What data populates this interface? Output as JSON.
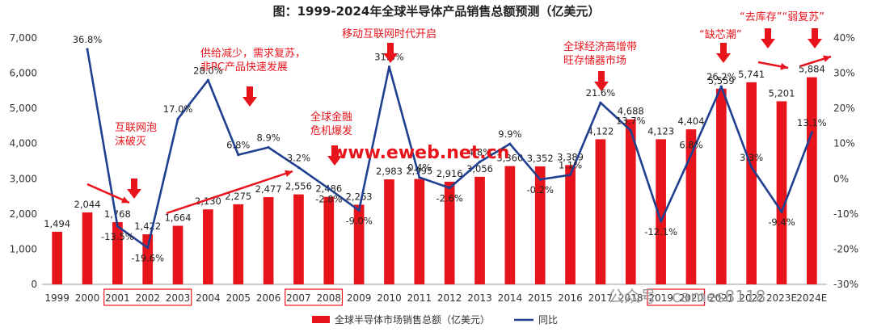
{
  "chart_data": {
    "type": "bar",
    "title": "图：1999-2024年全球半导体产品销售总额预测（亿美元）",
    "categories": [
      "1999",
      "2000",
      "2001",
      "2002",
      "2003",
      "2004",
      "2005",
      "2006",
      "2007",
      "2008",
      "2009",
      "2010",
      "2011",
      "2012",
      "2013",
      "2014",
      "2015",
      "2016",
      "2017",
      "2018",
      "2019",
      "2020",
      "2021",
      "2022",
      "2023E",
      "2024E"
    ],
    "series": [
      {
        "name": "全球半导体市场销售总额（亿美元）",
        "type": "bar",
        "color": "#e8141c",
        "axis": "left",
        "values": [
          1494,
          2044,
          1768,
          1422,
          1664,
          2130,
          2275,
          2477,
          2556,
          2486,
          2263,
          2983,
          2995,
          2916,
          3056,
          3360,
          3352,
          3389,
          4122,
          4688,
          4123,
          4404,
          5559,
          5741,
          5201,
          5884
        ]
      },
      {
        "name": "同比",
        "type": "line",
        "color": "#1f3f8f",
        "axis": "right",
        "values": [
          null,
          36.8,
          -13.5,
          -19.6,
          17.0,
          28.0,
          6.8,
          8.9,
          3.2,
          -2.8,
          -9.0,
          31.8,
          0.4,
          -2.6,
          4.8,
          9.9,
          -0.2,
          1.1,
          21.6,
          13.7,
          -12.1,
          6.8,
          26.2,
          3.3,
          -9.4,
          13.1
        ]
      }
    ],
    "ylim_left": [
      0,
      7000
    ],
    "ylim_right": [
      -30,
      40
    ],
    "yticks_left": [
      "0",
      "1,000",
      "2,000",
      "3,000",
      "4,000",
      "5,000",
      "6,000",
      "7,000"
    ],
    "yticks_right": [
      "-30%",
      "-20%",
      "-10%",
      "0%",
      "10%",
      "20%",
      "30%",
      "40%"
    ],
    "bar_labels": [
      "1,494",
      "2,044",
      "1,768",
      "1,422",
      "1,664",
      "2,130",
      "2,275",
      "2,477",
      "2,556",
      "2,486",
      "2,263",
      "2,983",
      "2,995",
      "2,916",
      "3,056",
      "3,360",
      "3,352",
      "3,389",
      "4,122",
      "4,688",
      "4,123",
      "4,404",
      "5,559",
      "5,741",
      "5,201",
      "5,884"
    ],
    "line_labels": [
      "",
      "36.8%",
      "-13.5%",
      "-19.6%",
      "17.0%",
      "28.0%",
      "6.8%",
      "8.9%",
      "3.2%",
      "-2.8%",
      "-9.0%",
      "31.8%",
      "0.4%",
      "-2.6%",
      "4.8%",
      "9.9%",
      "-0.2%",
      "1.1%",
      "21.6%",
      "13.7%",
      "-12.1%",
      "6.8%",
      "26.2%",
      "3.3%",
      "-9.4%",
      "13.1%"
    ],
    "highlighted_categories": [
      [
        "2001",
        "2002",
        "2003"
      ],
      [
        "2007",
        "2008"
      ],
      [
        "2019",
        "2020"
      ]
    ],
    "annotations": [
      {
        "lines": [
          "互联网泡",
          "沫破灭"
        ]
      },
      {
        "lines": [
          "供给减少，需求复苏，",
          "非PC产品快速发展"
        ]
      },
      {
        "lines": [
          "全球金融",
          "危机爆发"
        ]
      },
      {
        "lines": [
          "移动互联网时代开启"
        ]
      },
      {
        "lines": [
          "全球经济高增带",
          "旺存储器市场"
        ]
      },
      {
        "lines": [
          "“缺芯潮”"
        ]
      },
      {
        "lines": [
          "“去库存”“弱复苏”"
        ]
      }
    ],
    "legend_placement": "bottom",
    "grid": false
  },
  "watermarks": [
    "www.eweb.net.cn",
    "公众号 · cames8118"
  ]
}
